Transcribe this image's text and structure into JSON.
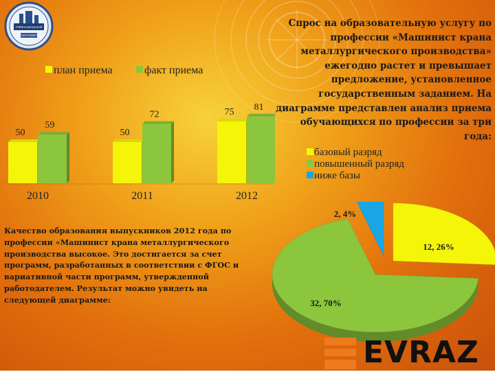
{
  "colors": {
    "bar_plan": "#f5f50a",
    "bar_fact": "#8cc63c",
    "pie_base": "#f5f50a",
    "pie_advanced": "#8cc63c",
    "pie_below": "#1aa6e4",
    "accent_orange": "#e86a10"
  },
  "logo": {
    "text": "ГОРНОЗАВОДСКОЙ ПОЛИТЕХНИКУМ"
  },
  "top_paragraph": "Спрос на образовательную услугу по профессии «Машинист крана металлургического производства» ежегодно растет и превышает предложение, установленное государственным заданием. На диаграмме представлен анализ приема обучающихся по профессии за три года:",
  "bottom_paragraph": "Качество образования выпускников 2012 года по профессии «Машинист крана металлургического производства высокое. Это достигается за счет программ, разработанных в соответствии с ФГОС и вариативной части программ, утвержденной работодателем. Результат можно увидеть на следующей диаграмме:",
  "brand": {
    "name": "EVRAZ"
  },
  "chart_data": [
    {
      "type": "bar",
      "categories": [
        "2010",
        "2011",
        "2012"
      ],
      "series": [
        {
          "name": "план приема",
          "values": [
            50,
            50,
            75
          ]
        },
        {
          "name": "факт приема",
          "values": [
            59,
            72,
            81
          ]
        }
      ],
      "legend": "top",
      "grid": false,
      "ylim": [
        0,
        100
      ],
      "data_labels": true
    },
    {
      "type": "pie",
      "labels": [
        "базовый разряд",
        "повышенный разряд",
        "ниже базы"
      ],
      "values": [
        12,
        32,
        2
      ],
      "percents": [
        26,
        70,
        4
      ],
      "data_labels": [
        "12, 26%",
        "32, 70%",
        "2, 4%"
      ],
      "legend": "top"
    }
  ]
}
